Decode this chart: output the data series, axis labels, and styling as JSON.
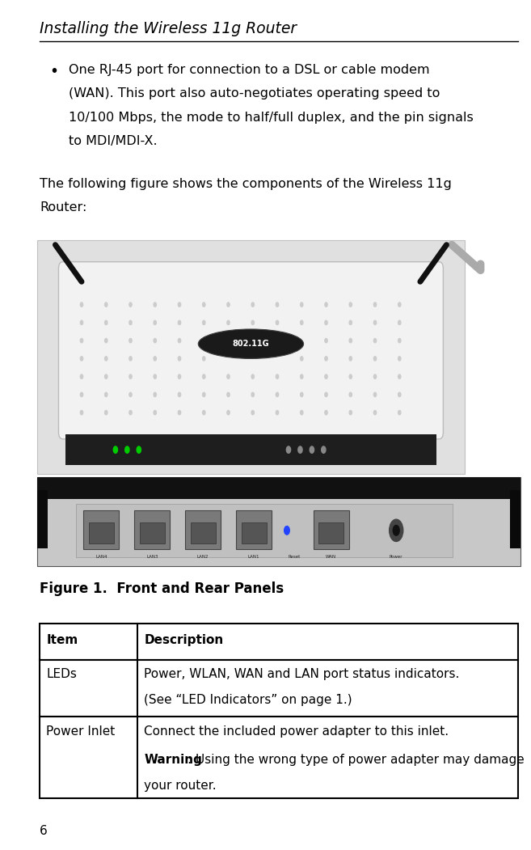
{
  "bg_color": "#ffffff",
  "header_text": "Installing the Wireless 11g Router",
  "bullet_lines": [
    "One RJ-45 port for connection to a DSL or cable modem",
    "(WAN). This port also auto-negotiates operating speed to",
    "10/100 Mbps, the mode to half/full duplex, and the pin signals",
    "to MDI/MDI-X."
  ],
  "body_lines": [
    "The following figure shows the components of the Wireless 11g",
    "Router:"
  ],
  "figure_caption": "Figure 1.  Front and Rear Panels",
  "table_header_col1": "Item",
  "table_header_col2": "Description",
  "table_rows": [
    {
      "col1": "LEDs",
      "col2_line1": "Power, WLAN, WAN and LAN port status indicators.",
      "col2_line2": "(See “LED Indicators” on page 1.)",
      "col2_line3": "",
      "col2_bold_word": ""
    },
    {
      "col1": "Power Inlet",
      "col2_line1": "Connect the included power adapter to this inlet.",
      "col2_line2": ": Using the wrong type of power adapter may damage",
      "col2_line3": "your router.",
      "col2_bold_word": "Warning"
    }
  ],
  "page_number": "6",
  "text_color": "#000000",
  "table_border_color": "#000000",
  "header_line_color": "#000000",
  "font_size_body": 11.5,
  "font_size_table": 11,
  "font_size_caption": 12,
  "font_size_header": 13.5,
  "font_size_page": 11,
  "ml": 0.075,
  "mr": 0.975,
  "lh": 0.028
}
